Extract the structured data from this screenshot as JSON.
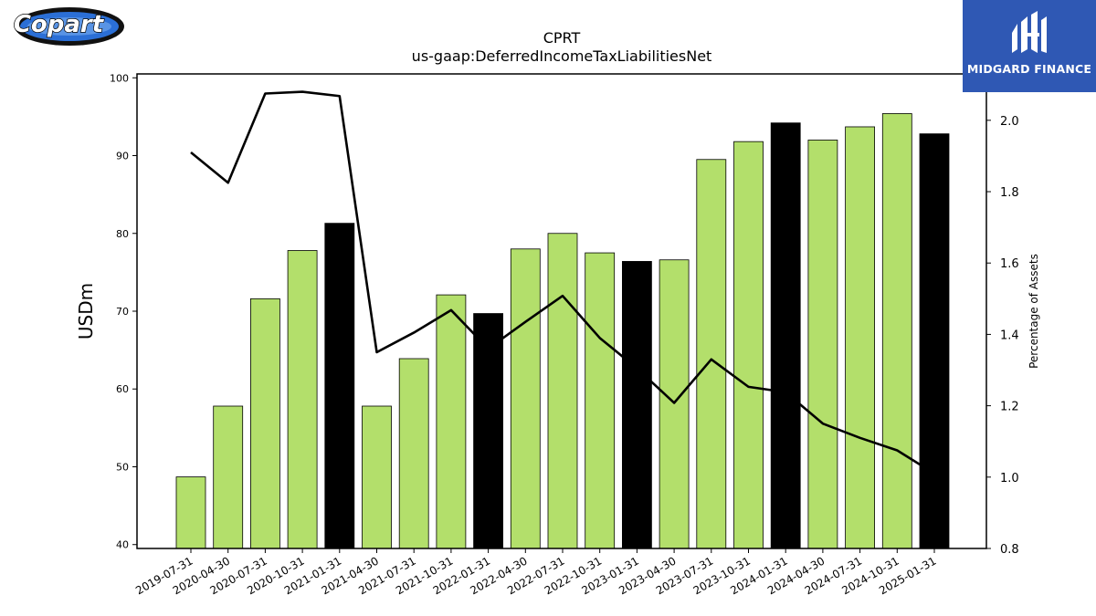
{
  "logos": {
    "left_text": "Copart",
    "right_text": "MIDGARD FINANCE"
  },
  "chart_data": {
    "type": "bar",
    "title": "CPRT",
    "subtitle": "us-gaap:DeferredIncomeTaxLiabilitiesNet",
    "ylabel": "USDm",
    "y2label": "Percentage of Assets",
    "ylim": [
      39.5,
      100.5
    ],
    "y2lim": [
      0.8,
      2.13
    ],
    "yticks": [
      40,
      50,
      60,
      70,
      80,
      90,
      100
    ],
    "y2ticks": [
      "0.8",
      "1.0",
      "1.2",
      "1.4",
      "1.6",
      "1.8",
      "2.0"
    ],
    "categories": [
      "2019-07-31",
      "2020-04-30",
      "2020-07-31",
      "2020-10-31",
      "2021-01-31",
      "2021-04-30",
      "2021-07-31",
      "2021-10-31",
      "2022-01-31",
      "2022-04-30",
      "2022-07-31",
      "2022-10-31",
      "2023-01-31",
      "2023-04-30",
      "2023-07-31",
      "2023-10-31",
      "2024-01-31",
      "2024-04-30",
      "2024-07-31",
      "2024-10-31",
      "2025-01-31"
    ],
    "series": [
      {
        "axis": "left",
        "kind": "bar",
        "values": [
          48.7,
          57.8,
          71.6,
          77.8,
          81.3,
          57.8,
          63.9,
          72.1,
          69.7,
          78.0,
          80.0,
          77.5,
          76.4,
          76.6,
          89.5,
          91.8,
          94.2,
          92.0,
          93.7,
          95.4,
          92.8
        ],
        "highlight": [
          false,
          false,
          false,
          false,
          true,
          false,
          false,
          false,
          true,
          false,
          false,
          false,
          true,
          false,
          false,
          false,
          true,
          false,
          false,
          false,
          true
        ]
      },
      {
        "axis": "right",
        "kind": "line",
        "values": [
          1.91,
          1.825,
          2.075,
          2.08,
          2.068,
          1.35,
          1.405,
          1.468,
          1.36,
          1.435,
          1.508,
          1.39,
          1.305,
          1.208,
          1.33,
          1.253,
          1.238,
          1.15,
          1.11,
          1.075,
          1.01
        ]
      }
    ],
    "colors": {
      "bar": "#b3df6b",
      "bar_highlight": "#000000",
      "line": "#000000",
      "edge": "#000000"
    }
  }
}
